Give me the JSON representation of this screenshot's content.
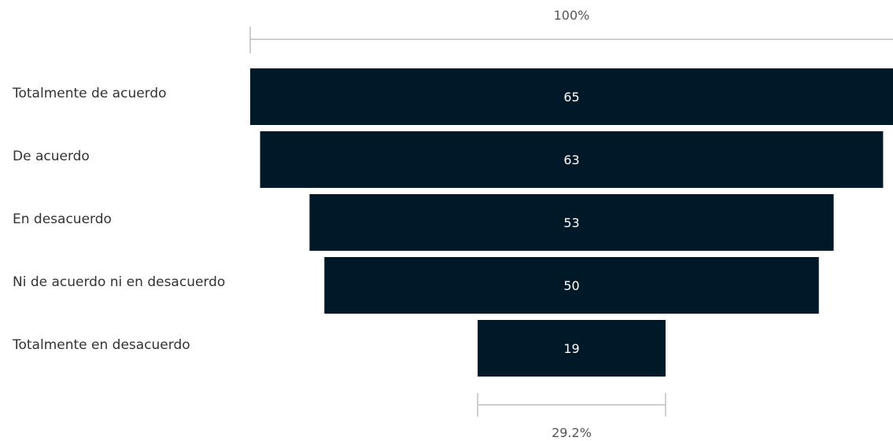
{
  "chart_data": {
    "type": "funnel",
    "categories": [
      "Totalmente de acuerdo",
      "De acuerdo",
      "En desacuerdo",
      "Ni de acuerdo ni en desacuerdo",
      "Totalmente en desacuerdo"
    ],
    "values": [
      65,
      63,
      53,
      50,
      19
    ],
    "value_labels": [
      "65",
      "63",
      "53",
      "50",
      "19"
    ],
    "top_percent_label": "100%",
    "bottom_percent_label": "29.2%",
    "bar_color": "#001928",
    "bracket_color": "#bfbfbf"
  }
}
